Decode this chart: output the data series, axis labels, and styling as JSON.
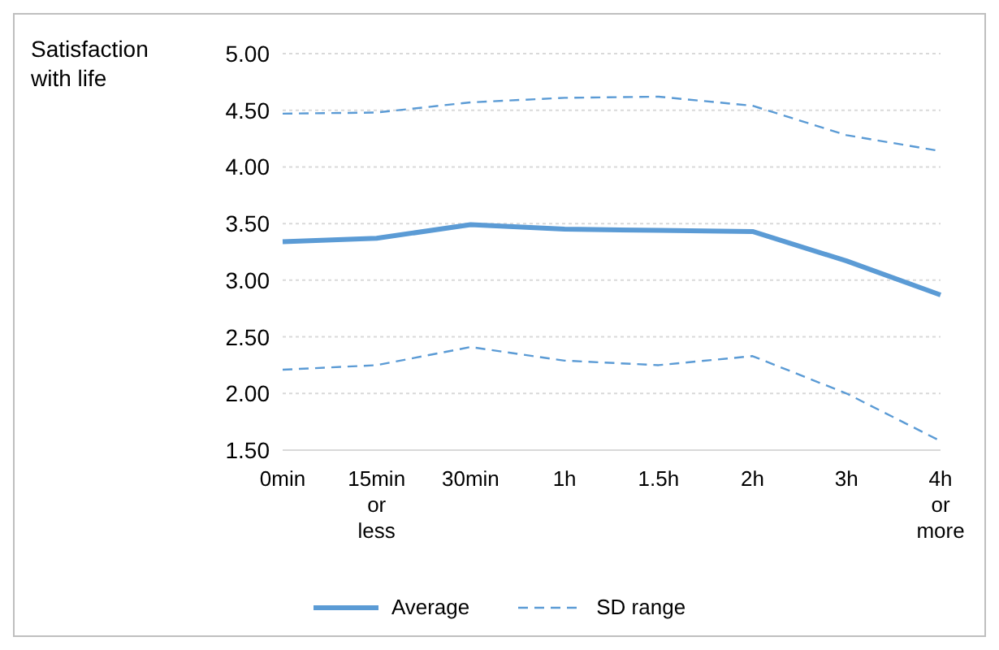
{
  "chart_data": {
    "type": "line",
    "ylabel": "Satisfaction with life",
    "categories": [
      "0min",
      "15min or less",
      "30min",
      "1h",
      "1.5h",
      "2h",
      "3h",
      "4h or more"
    ],
    "series": [
      {
        "name": "Average",
        "color": "#5b9bd5",
        "line_style": "solid",
        "values": [
          3.34,
          3.37,
          3.49,
          3.45,
          3.44,
          3.43,
          3.17,
          2.87
        ]
      },
      {
        "name": "SD range",
        "color": "#5b9bd5",
        "line_style": "dashed",
        "values": [
          4.47,
          4.48,
          4.57,
          4.61,
          4.62,
          4.54,
          4.28,
          4.14
        ]
      },
      {
        "color": "#5b9bd5",
        "line_style": "dashed",
        "values": [
          2.21,
          2.25,
          2.41,
          2.29,
          2.25,
          2.33,
          2.0,
          1.58
        ]
      }
    ],
    "ylim": [
      1.5,
      5.0
    ],
    "yticks": [
      {
        "value": 1.5,
        "label": "1.50"
      },
      {
        "value": 2.0,
        "label": "2.00"
      },
      {
        "value": 2.5,
        "label": "2.50"
      },
      {
        "value": 3.0,
        "label": "3.00"
      },
      {
        "value": 3.5,
        "label": "3.50"
      },
      {
        "value": 4.0,
        "label": "4.00"
      },
      {
        "value": 4.5,
        "label": "4.50"
      },
      {
        "value": 5.0,
        "label": "5.00"
      }
    ],
    "grid": "y",
    "legend": "bottom",
    "marker": "none"
  }
}
